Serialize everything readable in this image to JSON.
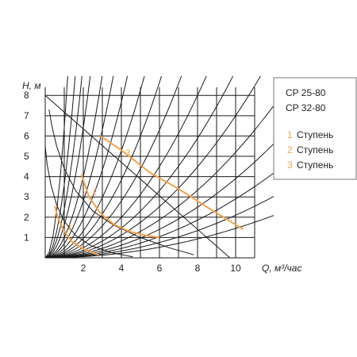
{
  "chart_data": {
    "type": "line",
    "ylabel": "H, м",
    "xlabel": "Q, м³/час",
    "xlim": [
      0,
      11
    ],
    "ylim": [
      0,
      8.4
    ],
    "x_ticks": [
      "2",
      "4",
      "6",
      "8",
      "10"
    ],
    "y_ticks": [
      "1",
      "2",
      "3",
      "4",
      "5",
      "6",
      "7",
      "8"
    ],
    "grid": true,
    "legend_position": "top-right",
    "legend": {
      "models": [
        "CP 25-80",
        "CP 32-80"
      ],
      "stages": [
        {
          "num": "1",
          "label": "Ступень"
        },
        {
          "num": "2",
          "label": "Ступень"
        },
        {
          "num": "3",
          "label": "Ступень"
        }
      ]
    },
    "series": [
      {
        "name": "1",
        "color": "#f5a14a",
        "x": [
          0.5,
          0.7,
          1.0,
          1.4,
          2.0,
          2.8
        ],
        "y": [
          2.55,
          1.9,
          1.3,
          0.8,
          0.45,
          0.15
        ]
      },
      {
        "name": "2",
        "color": "#f5a14a",
        "x": [
          1.9,
          2.3,
          2.9,
          3.6,
          4.4,
          5.3,
          6.0
        ],
        "y": [
          4.1,
          3.0,
          2.2,
          1.65,
          1.3,
          1.1,
          1.0
        ]
      },
      {
        "name": "3",
        "color": "#f5a14a",
        "x": [
          2.9,
          4.0,
          5.5,
          7.0,
          8.5,
          9.7,
          10.4
        ],
        "y": [
          6.0,
          5.3,
          4.2,
          3.4,
          2.5,
          1.8,
          1.4
        ]
      }
    ],
    "system_curves_k": [
      64,
      36,
      24,
      16,
      10,
      7,
      4.8,
      3.3,
      2.4,
      1.75,
      1.25,
      0.92,
      0.7,
      0.52,
      0.39,
      0.29,
      0.21,
      0.145
    ],
    "background_lines": [
      {
        "x": [
          0,
          9.7
        ],
        "y": [
          8.0,
          0
        ]
      },
      {
        "x": [
          0.2,
          0.35,
          0.6,
          1.0,
          1.6,
          2.5,
          3.6,
          5.0,
          6.5,
          7.8
        ],
        "y": [
          7.3,
          6.5,
          5.5,
          4.4,
          3.3,
          2.3,
          1.6,
          1.0,
          0.5,
          0.15
        ]
      },
      {
        "x": [
          0.0,
          0.1,
          0.3,
          0.6,
          1.0,
          1.6,
          2.4,
          3.5,
          4.6
        ],
        "y": [
          5.5,
          4.6,
          3.6,
          2.6,
          1.8,
          1.1,
          0.6,
          0.25,
          0.05
        ]
      }
    ]
  }
}
